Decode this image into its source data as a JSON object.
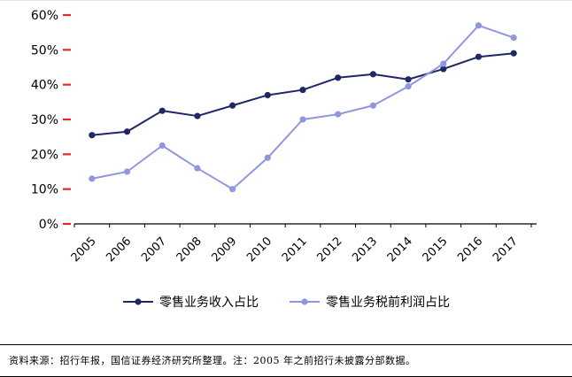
{
  "chart_data": {
    "type": "line",
    "title": "",
    "xlabel": "",
    "ylabel": "",
    "ylim": [
      0,
      60
    ],
    "ytick_step": 10,
    "ytick_labels": [
      "0%",
      "10%",
      "20%",
      "30%",
      "40%",
      "50%",
      "60%"
    ],
    "grid": false,
    "legend_position": "bottom",
    "categories": [
      "2005",
      "2006",
      "2007",
      "2008",
      "2009",
      "2010",
      "2011",
      "2012",
      "2013",
      "2014",
      "2015",
      "2016",
      "2017"
    ],
    "series": [
      {
        "name": "零售业务收入占比",
        "color": "#1f2766",
        "marker": "circle",
        "values": [
          25.5,
          26.5,
          32.5,
          31,
          34,
          37,
          38.5,
          42,
          43,
          41.5,
          44.5,
          48,
          49
        ]
      },
      {
        "name": "零售业务税前利润占比",
        "color": "#9196dd",
        "marker": "circle",
        "values": [
          13,
          15,
          22.5,
          16,
          10,
          19,
          30,
          31.5,
          34,
          39.5,
          46,
          57,
          53.5
        ]
      }
    ],
    "axis_tick_color_y": "#e8262a",
    "axis_color": "#000000"
  },
  "footer": {
    "source_note": "资料来源：招行年报，国信证券经济研究所整理。注：2005 年之前招行未披露分部数据。"
  }
}
